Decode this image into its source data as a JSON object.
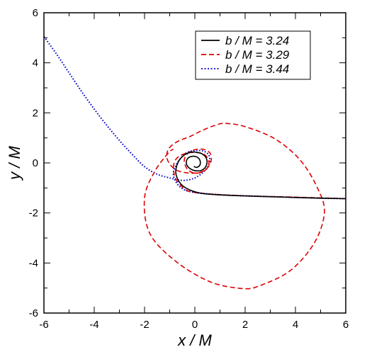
{
  "chart_data": {
    "type": "line",
    "title": "",
    "xlabel": "x / M",
    "ylabel": "y / M",
    "xlim": [
      -6,
      6
    ],
    "ylim": [
      -6,
      6
    ],
    "xticks": [
      -6,
      -4,
      -2,
      0,
      2,
      4,
      6
    ],
    "yticks": [
      -6,
      -4,
      -2,
      0,
      2,
      4,
      6
    ],
    "grid": false,
    "legend_position": "top-right",
    "series": [
      {
        "name": "b / M = 3.24",
        "color": "#000000",
        "style": "solid",
        "points": [
          [
            6,
            -1.43
          ],
          [
            5,
            -1.41
          ],
          [
            4,
            -1.38
          ],
          [
            3,
            -1.35
          ],
          [
            2,
            -1.32
          ],
          [
            1,
            -1.28
          ],
          [
            0.3,
            -1.22
          ],
          [
            -0.2,
            -1.08
          ],
          [
            -0.55,
            -0.85
          ],
          [
            -0.75,
            -0.45
          ],
          [
            -0.7,
            -0.05
          ],
          [
            -0.5,
            0.25
          ],
          [
            -0.2,
            0.42
          ],
          [
            0.1,
            0.42
          ],
          [
            0.35,
            0.32
          ],
          [
            0.48,
            0.12
          ],
          [
            0.45,
            -0.12
          ],
          [
            0.3,
            -0.28
          ],
          [
            0.1,
            -0.32
          ],
          [
            -0.1,
            -0.28
          ],
          [
            -0.28,
            -0.15
          ],
          [
            -0.34,
            0.02
          ],
          [
            -0.28,
            0.18
          ],
          [
            -0.12,
            0.26
          ],
          [
            0.05,
            0.25
          ],
          [
            0.18,
            0.15
          ],
          [
            0.22,
            0
          ],
          [
            0.18,
            -0.12
          ],
          [
            0.06,
            -0.18
          ],
          [
            -0.04,
            -0.14
          ]
        ]
      },
      {
        "name": "b / M = 3.29",
        "color": "#dd0000",
        "style": "dashed",
        "points": [
          [
            6,
            -1.43
          ],
          [
            5.05,
            -1.4
          ],
          [
            4.4,
            -1.38
          ],
          [
            2.5,
            -1.33
          ],
          [
            1,
            -1.27
          ],
          [
            0,
            -1.18
          ],
          [
            -0.4,
            -1.05
          ],
          [
            -0.75,
            -0.65
          ],
          [
            -0.85,
            -0.2
          ],
          [
            -0.75,
            0.15
          ],
          [
            -0.45,
            0.35
          ],
          [
            -0.05,
            0.42
          ],
          [
            0.35,
            0.35
          ],
          [
            0.55,
            0.1
          ],
          [
            0.5,
            -0.2
          ],
          [
            0.25,
            -0.38
          ],
          [
            -0.05,
            -0.4
          ],
          [
            -0.3,
            -0.25
          ],
          [
            -0.42,
            0.05
          ],
          [
            -0.35,
            0.3
          ],
          [
            -0.1,
            0.5
          ],
          [
            0.3,
            0.55
          ],
          [
            0.6,
            0.4
          ],
          [
            0.65,
            0.1
          ],
          [
            0.5,
            -0.2
          ],
          [
            0.2,
            -0.38
          ],
          [
            -0.3,
            -0.4
          ],
          [
            -0.8,
            -0.25
          ],
          [
            -1.1,
            0.15
          ],
          [
            -1.05,
            0.55
          ],
          [
            -0.7,
            0.85
          ],
          [
            -0.2,
            1.05
          ],
          [
            0.3,
            1.3
          ],
          [
            0.8,
            1.5
          ],
          [
            1.2,
            1.58
          ],
          [
            2,
            1.45
          ],
          [
            3.2,
            0.95
          ],
          [
            4.2,
            0.1
          ],
          [
            4.9,
            -1.05
          ],
          [
            5.15,
            -2
          ],
          [
            4.75,
            -3.2
          ],
          [
            3.8,
            -4.3
          ],
          [
            2.6,
            -4.9
          ],
          [
            1.9,
            -5.02
          ],
          [
            0.6,
            -4.75
          ],
          [
            -0.8,
            -3.9
          ],
          [
            -1.8,
            -2.8
          ],
          [
            -2.0,
            -1.4
          ],
          [
            -1.6,
            -0.35
          ],
          [
            -1.05,
            0.4
          ],
          [
            -0.85,
            0.55
          ]
        ]
      },
      {
        "name": "b / M = 3.44",
        "color": "#0000cc",
        "style": "dotted",
        "points": [
          [
            -6,
            5.05
          ],
          [
            -5.5,
            4.35
          ],
          [
            -5,
            3.6
          ],
          [
            -4.5,
            2.85
          ],
          [
            -4,
            2.15
          ],
          [
            -3.5,
            1.5
          ],
          [
            -3,
            0.9
          ],
          [
            -2.5,
            0.35
          ],
          [
            -2,
            -0.15
          ],
          [
            -1.5,
            -0.45
          ],
          [
            -1,
            -0.6
          ],
          [
            -0.5,
            -0.7
          ],
          [
            -0.05,
            -0.62
          ],
          [
            0.3,
            -0.4
          ],
          [
            0.55,
            -0.08
          ],
          [
            0.58,
            0.25
          ],
          [
            0.4,
            0.45
          ],
          [
            0.05,
            0.5
          ],
          [
            -0.3,
            0.42
          ],
          [
            -0.55,
            0.2
          ],
          [
            -0.75,
            -0.1
          ],
          [
            -0.85,
            -0.5
          ],
          [
            -0.6,
            -0.95
          ],
          [
            -0.1,
            -1.17
          ],
          [
            1,
            -1.27
          ],
          [
            2,
            -1.32
          ],
          [
            3,
            -1.35
          ],
          [
            4,
            -1.38
          ],
          [
            5,
            -1.41
          ],
          [
            6,
            -1.43
          ]
        ]
      }
    ]
  }
}
